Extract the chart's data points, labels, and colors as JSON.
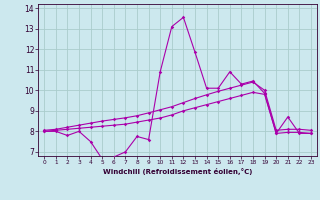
{
  "xlabel": "Windchill (Refroidissement éolien,°C)",
  "background_color": "#cce8ee",
  "grid_color": "#aacccc",
  "line_color": "#aa00aa",
  "xlim": [
    -0.5,
    23.5
  ],
  "ylim": [
    6.8,
    14.2
  ],
  "yticks": [
    7,
    8,
    9,
    10,
    11,
    12,
    13,
    14
  ],
  "xticks": [
    0,
    1,
    2,
    3,
    4,
    5,
    6,
    7,
    8,
    9,
    10,
    11,
    12,
    13,
    14,
    15,
    16,
    17,
    18,
    19,
    20,
    21,
    22,
    23
  ],
  "series1_x": [
    0,
    1,
    2,
    3,
    4,
    5,
    6,
    7,
    8,
    9,
    10,
    11,
    12,
    13,
    14,
    15,
    16,
    17,
    18,
    19,
    20,
    21,
    22,
    23
  ],
  "series1_y": [
    8.0,
    8.0,
    7.8,
    8.0,
    7.5,
    6.65,
    6.75,
    7.0,
    7.75,
    7.6,
    10.9,
    13.1,
    13.55,
    11.85,
    10.1,
    10.1,
    10.9,
    10.3,
    10.45,
    9.85,
    7.9,
    8.7,
    7.9,
    7.9
  ],
  "series2_x": [
    0,
    1,
    2,
    3,
    4,
    5,
    6,
    7,
    8,
    9,
    10,
    11,
    12,
    13,
    14,
    15,
    16,
    17,
    18,
    19,
    20,
    21,
    22,
    23
  ],
  "series2_y": [
    8.0,
    8.05,
    8.1,
    8.15,
    8.2,
    8.25,
    8.3,
    8.35,
    8.45,
    8.55,
    8.65,
    8.8,
    9.0,
    9.15,
    9.3,
    9.45,
    9.6,
    9.75,
    9.9,
    9.8,
    7.9,
    7.95,
    7.95,
    7.9
  ],
  "series3_x": [
    0,
    1,
    2,
    3,
    4,
    5,
    6,
    7,
    8,
    9,
    10,
    11,
    12,
    13,
    14,
    15,
    16,
    17,
    18,
    19,
    20,
    21,
    22,
    23
  ],
  "series3_y": [
    8.05,
    8.1,
    8.2,
    8.3,
    8.4,
    8.5,
    8.58,
    8.66,
    8.76,
    8.9,
    9.05,
    9.2,
    9.4,
    9.6,
    9.78,
    9.95,
    10.1,
    10.25,
    10.4,
    10.0,
    8.05,
    8.1,
    8.1,
    8.05
  ]
}
